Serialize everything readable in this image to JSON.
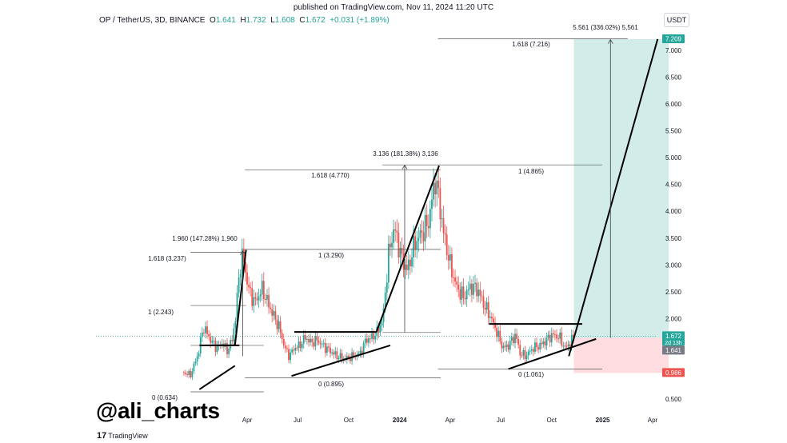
{
  "header": {
    "published": "published on TradingView.com, Nov 11, 2024 11:20 UTC",
    "symbol": "OP / TetherUS, 3D, BINANCE",
    "open_label": "O",
    "open": "1.641",
    "high_label": "H",
    "high": "1.732",
    "low_label": "L",
    "low": "1.608",
    "close_label": "C",
    "close": "1.672",
    "change": "+0.031 (+1.89%)",
    "currency": "USDT"
  },
  "watermark": "@ali_charts",
  "logo": {
    "text": "TradingView",
    "mark": "17"
  },
  "colors": {
    "up": "#26a69a",
    "down": "#ef5350",
    "target_zone": "#b2dfdb",
    "stop_zone": "#ffcdd2",
    "trendline": "#000000",
    "price_badge": "#26a69a",
    "stop_badge": "#ef5350"
  },
  "chart_data": {
    "type": "candlestick",
    "symbol": "OP / TetherUS",
    "timeframe": "3D",
    "ylim": [
      0.43,
      7.5
    ],
    "y_ticks": [
      "7.000",
      "6.500",
      "6.000",
      "5.500",
      "5.000",
      "4.500",
      "4.000",
      "3.500",
      "3.000",
      "2.500",
      "2.000",
      "1.500",
      "1.000",
      "0.500"
    ],
    "y_tick_values": [
      7.0,
      6.5,
      6.0,
      5.5,
      5.0,
      4.5,
      4.0,
      3.5,
      3.0,
      2.5,
      2.0,
      1.5,
      1.0,
      0.5
    ],
    "x_ticks": [
      "Apr",
      "Jul",
      "Oct",
      "2024",
      "Apr",
      "Jul",
      "Oct",
      "2025",
      "Apr"
    ],
    "x_tick_dates": [
      "2023-04-01",
      "2023-07-01",
      "2023-10-01",
      "2024-01-01",
      "2024-04-01",
      "2024-07-01",
      "2024-10-01",
      "2025-01-01",
      "2025-04-01"
    ],
    "price_series": [
      [
        "2022-12-05",
        1.0
      ],
      [
        "2022-12-20",
        0.95
      ],
      [
        "2023-01-03",
        1.35
      ],
      [
        "2023-01-12",
        1.85
      ],
      [
        "2023-01-25",
        1.6
      ],
      [
        "2023-02-05",
        1.45
      ],
      [
        "2023-02-15",
        1.55
      ],
      [
        "2023-02-24",
        1.4
      ],
      [
        "2023-03-05",
        1.6
      ],
      [
        "2023-03-12",
        2.1
      ],
      [
        "2023-03-18",
        2.9
      ],
      [
        "2023-03-24",
        3.2
      ],
      [
        "2023-03-30",
        2.8
      ],
      [
        "2023-04-05",
        2.5
      ],
      [
        "2023-04-15",
        2.3
      ],
      [
        "2023-04-28",
        2.55
      ],
      [
        "2023-05-12",
        2.2
      ],
      [
        "2023-05-28",
        1.85
      ],
      [
        "2023-06-08",
        1.45
      ],
      [
        "2023-06-16",
        1.3
      ],
      [
        "2023-06-25",
        1.45
      ],
      [
        "2023-07-05",
        1.5
      ],
      [
        "2023-07-15",
        1.65
      ],
      [
        "2023-07-25",
        1.55
      ],
      [
        "2023-08-05",
        1.6
      ],
      [
        "2023-08-15",
        1.5
      ],
      [
        "2023-08-28",
        1.4
      ],
      [
        "2023-09-10",
        1.3
      ],
      [
        "2023-09-25",
        1.25
      ],
      [
        "2023-10-08",
        1.3
      ],
      [
        "2023-10-22",
        1.35
      ],
      [
        "2023-11-01",
        1.6
      ],
      [
        "2023-11-12",
        1.65
      ],
      [
        "2023-11-22",
        1.75
      ],
      [
        "2023-12-02",
        2.0
      ],
      [
        "2023-12-12",
        3.2
      ],
      [
        "2023-12-22",
        3.7
      ],
      [
        "2024-01-05",
        3.1
      ],
      [
        "2024-01-15",
        2.9
      ],
      [
        "2024-01-28",
        3.4
      ],
      [
        "2024-02-10",
        3.6
      ],
      [
        "2024-02-22",
        3.8
      ],
      [
        "2024-03-05",
        4.6
      ],
      [
        "2024-03-10",
        4.35
      ],
      [
        "2024-03-20",
        3.6
      ],
      [
        "2024-04-01",
        3.0
      ],
      [
        "2024-04-12",
        2.6
      ],
      [
        "2024-04-25",
        2.4
      ],
      [
        "2024-05-08",
        2.6
      ],
      [
        "2024-05-20",
        2.55
      ],
      [
        "2024-06-01",
        2.25
      ],
      [
        "2024-06-12",
        2.05
      ],
      [
        "2024-06-24",
        1.75
      ],
      [
        "2024-07-05",
        1.45
      ],
      [
        "2024-07-15",
        1.5
      ],
      [
        "2024-07-28",
        1.7
      ],
      [
        "2024-08-05",
        1.35
      ],
      [
        "2024-08-15",
        1.3
      ],
      [
        "2024-08-28",
        1.45
      ],
      [
        "2024-09-10",
        1.5
      ],
      [
        "2024-09-22",
        1.6
      ],
      [
        "2024-10-02",
        1.7
      ],
      [
        "2024-10-15",
        1.65
      ],
      [
        "2024-10-25",
        1.45
      ],
      [
        "2024-11-03",
        1.55
      ],
      [
        "2024-11-10",
        1.672
      ]
    ],
    "last_price": "1.672",
    "last_price_countdown": "2d 13h",
    "open_price": "1.641",
    "stop_price": "0.986",
    "target_price": "7.209",
    "fib_labels": [
      {
        "text": "0 (0.634)",
        "value": 0.634
      },
      {
        "text": "1 (2.243)",
        "value": 2.243
      },
      {
        "text": "1.618 (3.237)",
        "value": 3.237
      },
      {
        "text": "1.960 (147.28%) 1,960"
      },
      {
        "text": "0 (0.895)",
        "value": 0.895
      },
      {
        "text": "1 (3.290)",
        "value": 3.29
      },
      {
        "text": "1.618 (4.770)",
        "value": 4.77
      },
      {
        "text": "3.136 (181.38%) 3,136"
      },
      {
        "text": "0 (1.061)",
        "value": 1.061
      },
      {
        "text": "1 (4.865)",
        "value": 4.865
      },
      {
        "text": "1.618 (7.216)",
        "value": 7.216
      },
      {
        "text": "5.561 (336.02%) 5,561"
      }
    ],
    "fib_levels": [
      {
        "from": "2022-12-20",
        "to": "2023-05-01",
        "value": 0.634
      },
      {
        "from": "2022-12-20",
        "to": "2023-05-01",
        "value": 1.5
      },
      {
        "from": "2022-12-20",
        "to": "2023-03-30",
        "value": 2.243
      },
      {
        "from": "2022-12-20",
        "to": "2023-03-30",
        "value": 3.237
      },
      {
        "from": "2023-03-28",
        "to": "2024-03-15",
        "value": 0.895
      },
      {
        "from": "2023-03-28",
        "to": "2024-03-15",
        "value": 3.29
      },
      {
        "from": "2023-03-28",
        "to": "2024-03-15",
        "value": 4.77
      },
      {
        "from": "2023-12-01",
        "to": "2024-03-15",
        "value": 4.865
      },
      {
        "from": "2023-12-01",
        "to": "2024-03-15",
        "value": 1.74
      },
      {
        "from": "2024-03-10",
        "to": "2024-12-31",
        "value": 1.061
      },
      {
        "from": "2024-03-10",
        "to": "2024-12-31",
        "value": 4.865
      },
      {
        "from": "2024-03-10",
        "to": "2025-02-15",
        "value": 7.216
      }
    ],
    "trendlines": [
      {
        "from": [
          "2023-01-05",
          1.5
        ],
        "to": [
          "2023-03-18",
          1.5
        ]
      },
      {
        "from": [
          "2023-01-05",
          0.68
        ],
        "to": [
          "2023-03-10",
          1.12
        ]
      },
      {
        "from": [
          "2023-03-10",
          1.5
        ],
        "to": [
          "2023-03-30",
          3.28
        ]
      },
      {
        "from": [
          "2023-06-25",
          1.75
        ],
        "to": [
          "2023-11-20",
          1.75
        ]
      },
      {
        "from": [
          "2023-06-20",
          0.93
        ],
        "to": [
          "2023-12-15",
          1.5
        ]
      },
      {
        "from": [
          "2023-11-20",
          1.75
        ],
        "to": [
          "2024-03-12",
          4.85
        ]
      },
      {
        "from": [
          "2024-06-10",
          1.9
        ],
        "to": [
          "2024-11-25",
          1.9
        ]
      },
      {
        "from": [
          "2024-07-15",
          1.06
        ],
        "to": [
          "2024-12-20",
          1.62
        ]
      },
      {
        "from": [
          "2024-11-01",
          1.3
        ],
        "to": [
          "2025-04-10",
          7.21
        ]
      }
    ],
    "measure_arrows": [
      {
        "date": "2023-03-24",
        "from": 1.3,
        "to": 3.26,
        "label_index": 3
      },
      {
        "date": "2024-01-10",
        "from": 1.74,
        "to": 4.86,
        "label_index": 7
      },
      {
        "date": "2025-01-15",
        "from": 1.64,
        "to": 7.2,
        "label_index": 11
      }
    ],
    "target_zone": {
      "from_date": "2024-11-10",
      "to_date": "2025-04-30",
      "low": 1.641,
      "high": 7.209
    },
    "stop_zone": {
      "from_date": "2024-11-10",
      "to_date": "2025-04-30",
      "low": 0.986,
      "high": 1.641
    }
  }
}
